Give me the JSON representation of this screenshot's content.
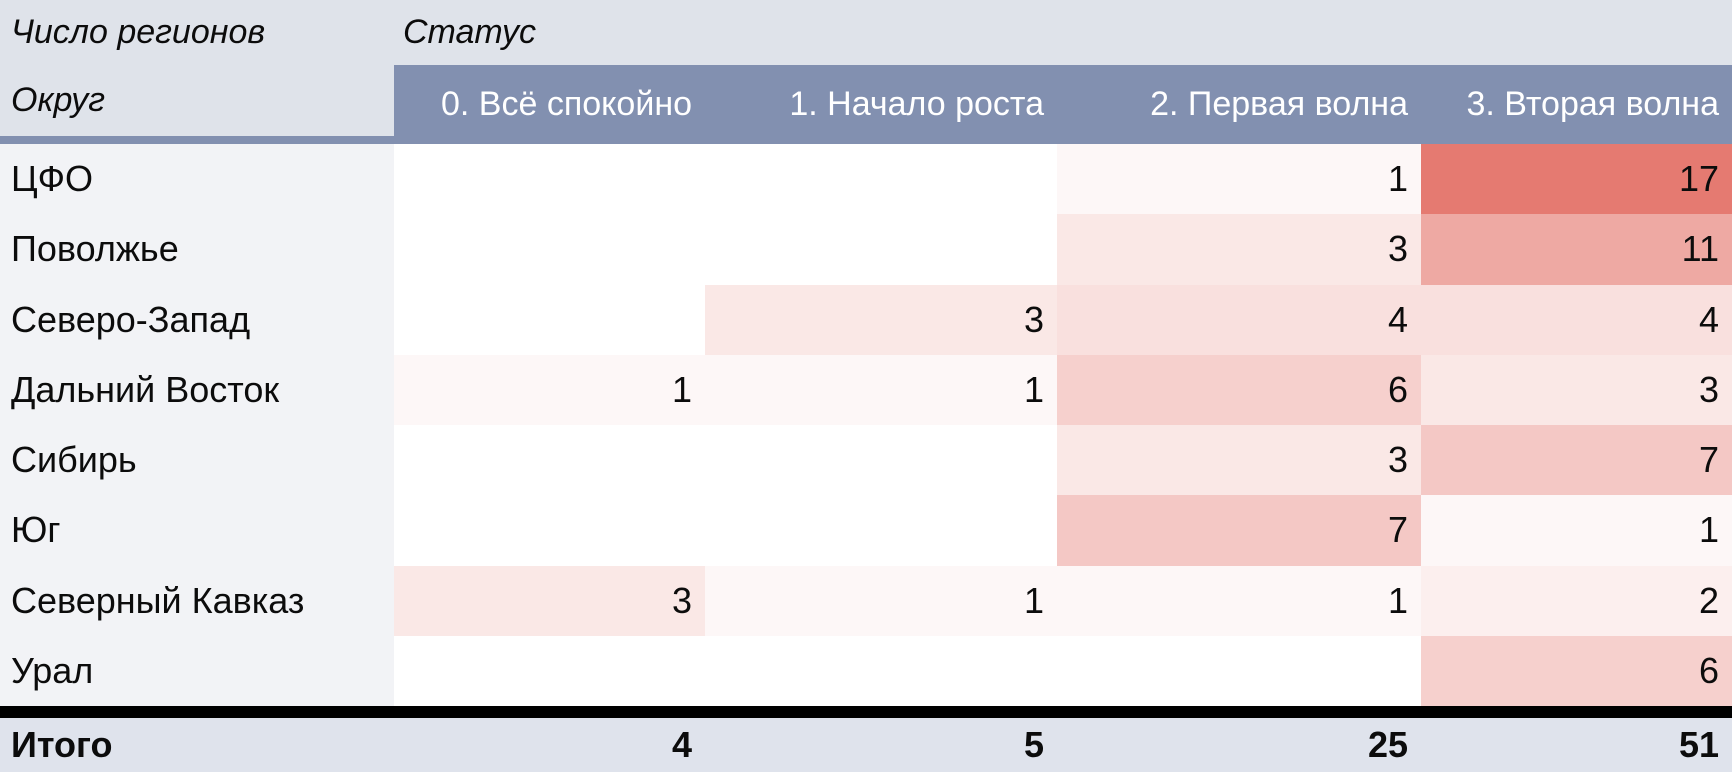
{
  "meta": {
    "measure": "Число регионов",
    "col_dimension": "Статус",
    "row_dimension": "Округ"
  },
  "columns": [
    "0. Всё спокойно",
    "1. Начало роста",
    "2. Первая волна",
    "3. Вторая волна"
  ],
  "rows": [
    {
      "label": "ЦФО",
      "values": [
        null,
        null,
        1,
        17
      ]
    },
    {
      "label": "Поволжье",
      "values": [
        null,
        null,
        3,
        11
      ]
    },
    {
      "label": "Северо-Запад",
      "values": [
        null,
        3,
        4,
        4
      ]
    },
    {
      "label": "Дальний Восток",
      "values": [
        1,
        1,
        6,
        3
      ]
    },
    {
      "label": "Сибирь",
      "values": [
        null,
        null,
        3,
        7
      ]
    },
    {
      "label": "Юг",
      "values": [
        null,
        null,
        7,
        1
      ]
    },
    {
      "label": "Северный Кавказ",
      "values": [
        3,
        1,
        1,
        2
      ]
    },
    {
      "label": "Урал",
      "values": [
        null,
        null,
        null,
        6
      ]
    }
  ],
  "totals": {
    "label": "Итого",
    "values": [
      4,
      5,
      25,
      51
    ]
  },
  "heatmap": {
    "max_value": 17,
    "zero_color": "#ffffff",
    "max_color": "#e57a71"
  },
  "colors": {
    "header_band": "#8290b0",
    "header_text": "#ffffff",
    "top_strip": "#dfe3ea",
    "label_column": "#f2f3f6",
    "totals_row": "#dfe3ec",
    "divider": "#000000",
    "body_text": "#0c0c0c"
  },
  "chart_data": {
    "type": "heatmap",
    "title": "Число регионов",
    "x_dimension": "Статус",
    "y_dimension": "Округ",
    "x_categories": [
      "0. Всё спокойно",
      "1. Начало роста",
      "2. Первая волна",
      "3. Вторая волна"
    ],
    "y_categories": [
      "ЦФО",
      "Поволжье",
      "Северо-Запад",
      "Дальний Восток",
      "Сибирь",
      "Юг",
      "Северный Кавказ",
      "Урал"
    ],
    "matrix": [
      [
        null,
        null,
        1,
        17
      ],
      [
        null,
        null,
        3,
        11
      ],
      [
        null,
        3,
        4,
        4
      ],
      [
        1,
        1,
        6,
        3
      ],
      [
        null,
        null,
        3,
        7
      ],
      [
        null,
        null,
        7,
        1
      ],
      [
        3,
        1,
        1,
        2
      ],
      [
        null,
        null,
        null,
        6
      ]
    ],
    "column_totals": [
      4,
      5,
      25,
      51
    ],
    "totals_label": "Итого",
    "color_scale": {
      "min": "#ffffff",
      "max": "#e57a71",
      "min_value": 0,
      "max_value": 17
    },
    "legend": "none",
    "grid": "off"
  }
}
